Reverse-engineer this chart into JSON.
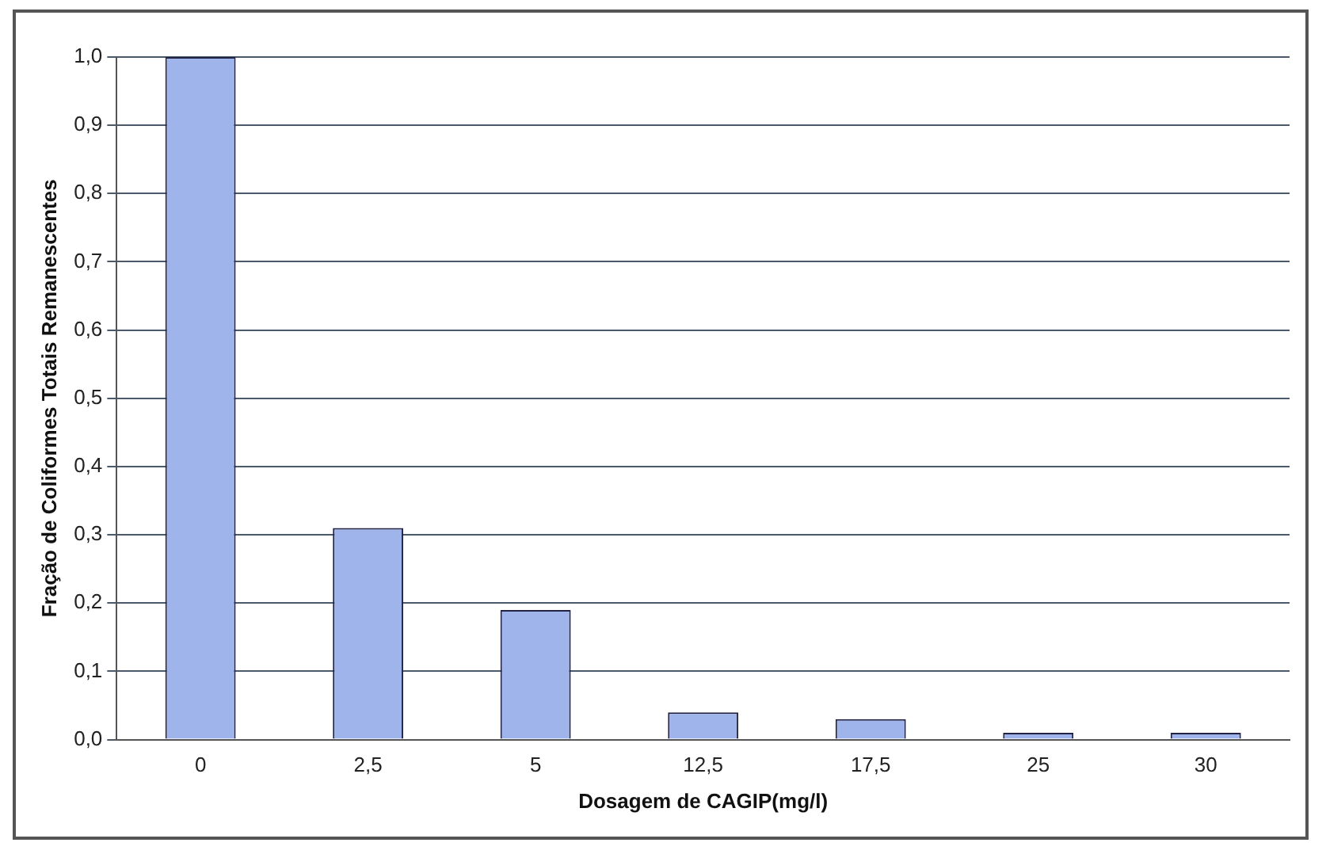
{
  "chart_data": {
    "type": "bar",
    "xlabel": "Dosagem de CAGIP(mg/l)",
    "ylabel": "Fração de Coliformes Totais Remanescentes",
    "categories": [
      "0",
      "2,5",
      "5",
      "12,5",
      "17,5",
      "25",
      "30"
    ],
    "values": [
      1.0,
      0.31,
      0.19,
      0.04,
      0.03,
      0.01,
      0.01
    ],
    "color": "#9fb4ea",
    "ylim": [
      0,
      1
    ],
    "yticks": [
      {
        "value": 0,
        "label": "0,0"
      },
      {
        "value": 0.1,
        "label": "0,1"
      },
      {
        "value": 0.2,
        "label": "0,2"
      },
      {
        "value": 0.3,
        "label": "0,3"
      },
      {
        "value": 0.4,
        "label": "0,4"
      },
      {
        "value": 0.5,
        "label": "0,5"
      },
      {
        "value": 0.6,
        "label": "0,6"
      },
      {
        "value": 0.7,
        "label": "0,7"
      },
      {
        "value": 0.8,
        "label": "0,8"
      },
      {
        "value": 0.9,
        "label": "0,9"
      },
      {
        "value": 1,
        "label": "1,0"
      }
    ],
    "grid": "y",
    "legend": false
  }
}
